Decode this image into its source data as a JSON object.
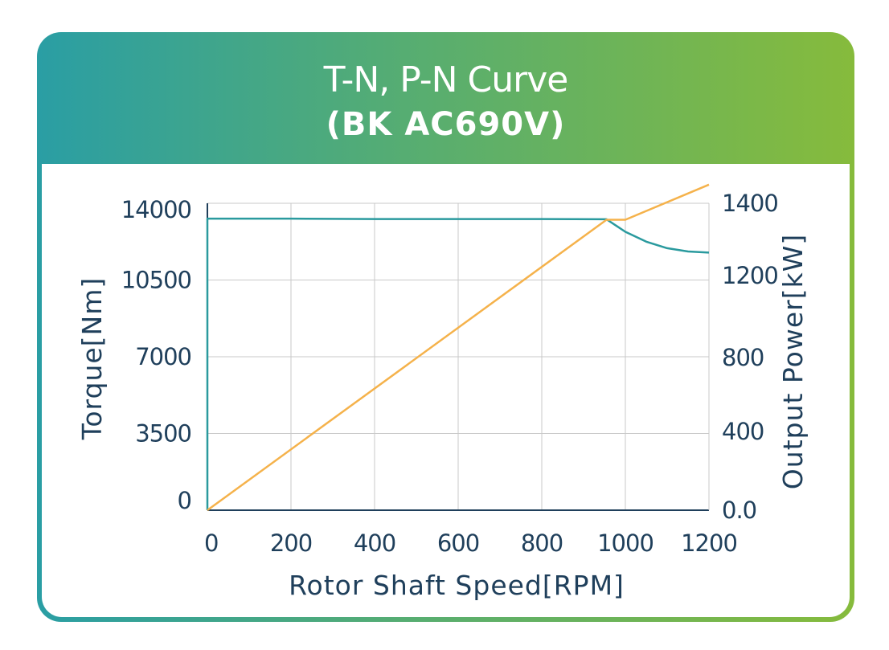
{
  "header": {
    "title": "T-N, P-N Curve",
    "subtitle": "(BK AC690V)"
  },
  "colors": {
    "torque_line": "#2a9a9e",
    "power_line": "#f5b24b",
    "grid": "#c9c9c9",
    "axis": "#1f3f5b"
  },
  "chart_data": {
    "type": "line",
    "title": "T-N, P-N Curve",
    "subtitle": "(BK AC690V)",
    "xlabel": "Rotor Shaft Speed[RPM]",
    "ylabel": "Torque[Nm]",
    "y2label": "Output Power[kW]",
    "xlim": [
      0,
      1200
    ],
    "ylim": [
      0,
      14000
    ],
    "y2lim": [
      0,
      1400
    ],
    "x_ticks": [
      "0",
      "200",
      "400",
      "600",
      "800",
      "1000",
      "1200"
    ],
    "y_ticks": [
      "0",
      "3500",
      "7000",
      "10500",
      "14000"
    ],
    "y2_ticks": [
      "0.0",
      "400",
      "800",
      "1200",
      "1400"
    ],
    "grid": true,
    "series": [
      {
        "name": "Torque",
        "axis": "left",
        "x": [
          0,
          0,
          200,
          400,
          600,
          800,
          955,
          980,
          1000,
          1050,
          1100,
          1150,
          1200
        ],
        "y": [
          0,
          13300,
          13300,
          13280,
          13280,
          13280,
          13270,
          12950,
          12700,
          12250,
          11950,
          11800,
          11750
        ]
      },
      {
        "name": "Output Power",
        "axis": "right",
        "x": [
          0,
          955,
          1000,
          1200
        ],
        "y": [
          0,
          1325,
          1325,
          1485
        ]
      }
    ]
  }
}
